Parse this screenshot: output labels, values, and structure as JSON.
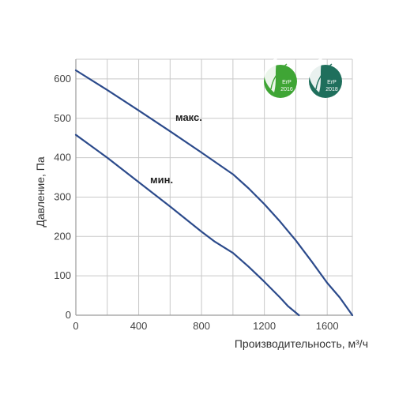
{
  "chart_data": {
    "type": "line",
    "title": "",
    "xlabel": "Производительность, м³/ч",
    "ylabel": "Давление, Па",
    "xlim": [
      0,
      1760
    ],
    "ylim": [
      0,
      650
    ],
    "xticks": [
      0,
      400,
      800,
      1200,
      1600
    ],
    "yticks": [
      0,
      100,
      200,
      300,
      400,
      500,
      600
    ],
    "grid": true,
    "line_color": "#2B4A8B",
    "series": [
      {
        "name": "макс.",
        "x": [
          0,
          200,
          400,
          600,
          800,
          1000,
          1100,
          1200,
          1300,
          1400,
          1500,
          1600,
          1680,
          1760
        ],
        "y": [
          622,
          572,
          520,
          467,
          413,
          358,
          322,
          282,
          238,
          190,
          137,
          82,
          45,
          0
        ]
      },
      {
        "name": "мин.",
        "x": [
          0,
          200,
          400,
          600,
          800,
          880,
          1000,
          1100,
          1200,
          1300,
          1350,
          1420
        ],
        "y": [
          458,
          400,
          338,
          276,
          212,
          188,
          158,
          123,
          85,
          45,
          23,
          0
        ]
      }
    ]
  },
  "badges": [
    {
      "text": "ErP",
      "year": "2016",
      "color": "#3FA535"
    },
    {
      "text": "ErP",
      "year": "2018",
      "color": "#1F6F5C"
    }
  ]
}
